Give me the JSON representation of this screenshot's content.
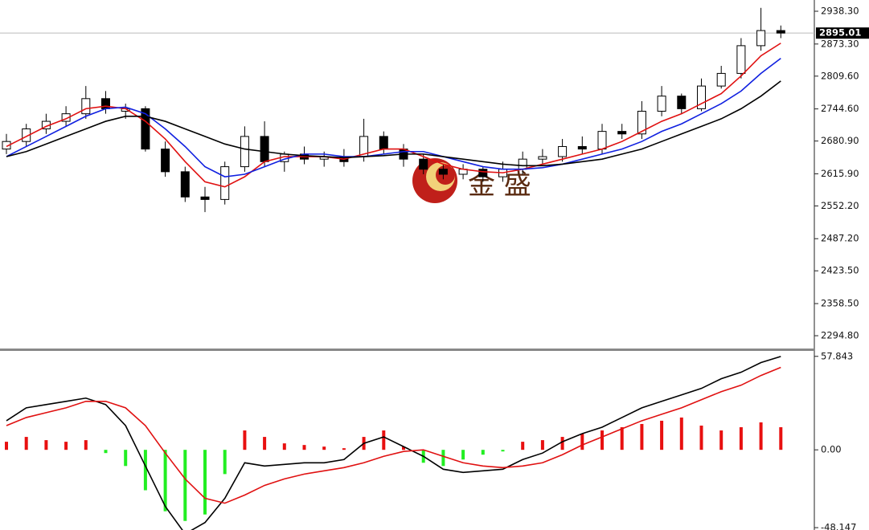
{
  "watermark": "金 盛",
  "chart_data": [
    {
      "type": "candlestick",
      "ylim": [
        2269.4,
        2960.6
      ],
      "yticks": [
        {
          "value": 2938.3,
          "label": "2938.30"
        },
        {
          "value": 2873.3,
          "label": "2873.30"
        },
        {
          "value": 2809.6,
          "label": "2809.60"
        },
        {
          "value": 2744.6,
          "label": "2744.60"
        },
        {
          "value": 2680.9,
          "label": "2680.90"
        },
        {
          "value": 2615.9,
          "label": "2615.90"
        },
        {
          "value": 2552.2,
          "label": "2552.20"
        },
        {
          "value": 2487.2,
          "label": "2487.20"
        },
        {
          "value": 2423.5,
          "label": "2423.50"
        },
        {
          "value": 2358.5,
          "label": "2358.50"
        },
        {
          "value": 2294.8,
          "label": "2294.80"
        }
      ],
      "last_price": 2895.01,
      "up_color": "#ffffff",
      "down_color": "#000000",
      "open": [
        2665,
        2680,
        2705,
        2720,
        2735,
        2765,
        2740,
        2745,
        2665,
        2620,
        2570,
        2565,
        2630,
        2690,
        2640,
        2655,
        2645,
        2650,
        2650,
        2690,
        2665,
        2645,
        2625,
        2615,
        2625,
        2610,
        2625,
        2645,
        2650,
        2670,
        2665,
        2700,
        2695,
        2740,
        2770,
        2745,
        2790,
        2815,
        2870,
        2900
      ],
      "high": [
        2695,
        2715,
        2735,
        2750,
        2790,
        2780,
        2755,
        2750,
        2680,
        2630,
        2590,
        2640,
        2710,
        2720,
        2660,
        2670,
        2660,
        2665,
        2725,
        2700,
        2675,
        2655,
        2635,
        2635,
        2630,
        2640,
        2660,
        2665,
        2685,
        2690,
        2715,
        2715,
        2760,
        2790,
        2775,
        2805,
        2830,
        2885,
        2945,
        2910
      ],
      "low": [
        2655,
        2670,
        2695,
        2710,
        2725,
        2735,
        2725,
        2660,
        2610,
        2560,
        2540,
        2555,
        2620,
        2630,
        2620,
        2635,
        2630,
        2630,
        2640,
        2655,
        2630,
        2615,
        2605,
        2605,
        2600,
        2600,
        2615,
        2635,
        2640,
        2655,
        2655,
        2685,
        2685,
        2730,
        2735,
        2740,
        2785,
        2805,
        2860,
        2885
      ],
      "close": [
        2680,
        2705,
        2720,
        2735,
        2765,
        2745,
        2745,
        2665,
        2620,
        2570,
        2565,
        2630,
        2690,
        2640,
        2655,
        2645,
        2650,
        2640,
        2690,
        2665,
        2645,
        2625,
        2615,
        2625,
        2610,
        2625,
        2645,
        2650,
        2670,
        2665,
        2700,
        2695,
        2740,
        2770,
        2745,
        2790,
        2815,
        2870,
        2900,
        2895.01
      ],
      "series": [
        {
          "color": "#e01010",
          "values": [
            2670,
            2690,
            2710,
            2725,
            2745,
            2750,
            2745,
            2720,
            2685,
            2640,
            2600,
            2590,
            2610,
            2640,
            2650,
            2650,
            2650,
            2645,
            2655,
            2665,
            2665,
            2650,
            2635,
            2625,
            2620,
            2618,
            2625,
            2635,
            2645,
            2655,
            2665,
            2680,
            2700,
            2720,
            2735,
            2755,
            2775,
            2810,
            2850,
            2875
          ]
        },
        {
          "color": "#1020e0",
          "values": [
            2650,
            2670,
            2690,
            2710,
            2730,
            2745,
            2748,
            2735,
            2705,
            2670,
            2630,
            2610,
            2615,
            2630,
            2645,
            2655,
            2655,
            2650,
            2650,
            2655,
            2660,
            2660,
            2650,
            2640,
            2630,
            2625,
            2625,
            2628,
            2635,
            2645,
            2655,
            2665,
            2680,
            2700,
            2715,
            2735,
            2755,
            2780,
            2815,
            2845
          ]
        },
        {
          "color": "#000000",
          "values": [
            2650,
            2660,
            2675,
            2690,
            2705,
            2720,
            2730,
            2730,
            2720,
            2705,
            2690,
            2675,
            2665,
            2660,
            2655,
            2652,
            2650,
            2648,
            2650,
            2652,
            2655,
            2655,
            2650,
            2645,
            2640,
            2635,
            2632,
            2632,
            2635,
            2640,
            2645,
            2655,
            2665,
            2680,
            2695,
            2710,
            2725,
            2745,
            2770,
            2800
          ]
        }
      ]
    },
    {
      "type": "macd",
      "ylim": [
        -49.6,
        61.2
      ],
      "yticks": [
        57.843,
        {
          "value": 0,
          "label": "0.00"
        },
        -48.147
      ],
      "positive_color": "#e81010",
      "negative_color": "#22ee22",
      "histogram": [
        5,
        8,
        6,
        5,
        6,
        -2,
        -10,
        -25,
        -38,
        -44,
        -40,
        -15,
        12,
        8,
        4,
        3,
        2,
        1,
        8,
        12,
        2,
        -8,
        -10,
        -6,
        -3,
        -1,
        5,
        6,
        8,
        10,
        12,
        14,
        16,
        18,
        20,
        15,
        12,
        14,
        17,
        14
      ],
      "series": [
        {
          "color": "#000000",
          "values": [
            18,
            26,
            28,
            30,
            32,
            28,
            15,
            -10,
            -35,
            -52,
            -45,
            -30,
            -8,
            -10,
            -9,
            -8,
            -8,
            -6,
            4,
            8,
            2,
            -4,
            -12,
            -14,
            -13,
            -12,
            -6,
            -2,
            5,
            10,
            14,
            20,
            26,
            30,
            34,
            38,
            44,
            48,
            54,
            57.8
          ]
        },
        {
          "color": "#e01010",
          "values": [
            15,
            20,
            23,
            26,
            30,
            30,
            26,
            15,
            -2,
            -18,
            -30,
            -33,
            -28,
            -22,
            -18,
            -15,
            -13,
            -11,
            -8,
            -4,
            -1,
            0,
            -4,
            -8,
            -10,
            -11,
            -10,
            -8,
            -3,
            3,
            8,
            13,
            18,
            22,
            26,
            31,
            36,
            40,
            46,
            51
          ]
        }
      ]
    }
  ]
}
